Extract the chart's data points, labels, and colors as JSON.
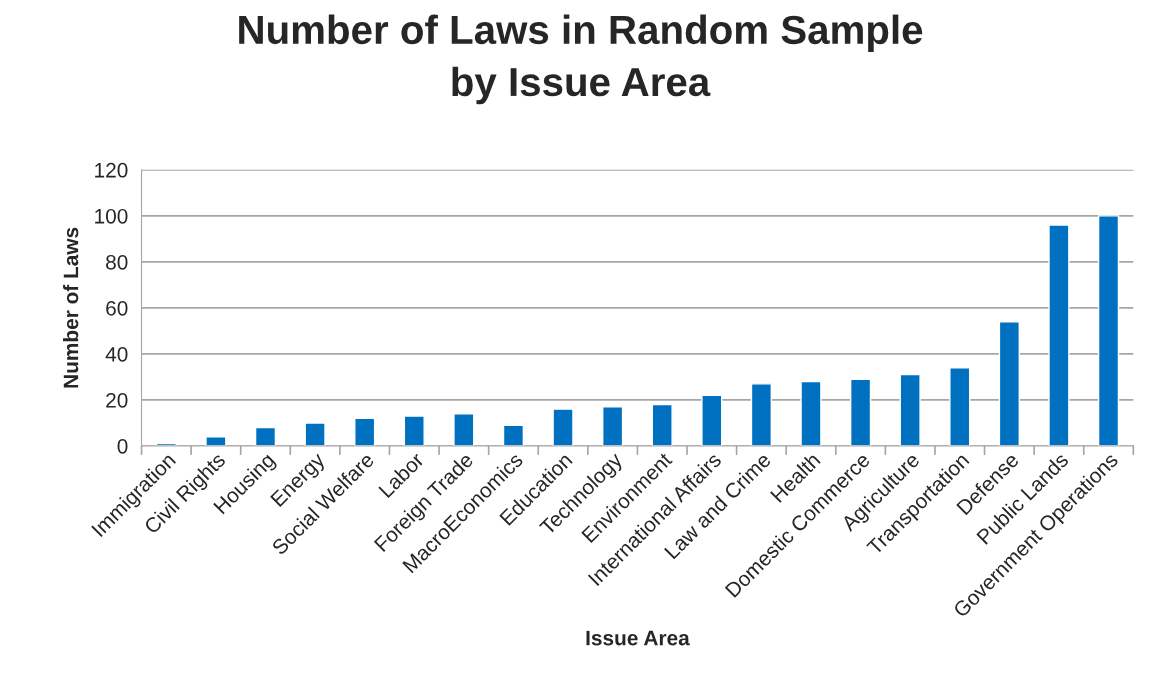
{
  "chart_data": {
    "type": "bar",
    "title": "Number of Laws in Random Sample\nby Issue Area",
    "xlabel": "Issue Area",
    "ylabel": "Number of Laws",
    "categories": [
      "Immigration",
      "Civil Rights",
      "Housing",
      "Energy",
      "Social Welfare",
      "Labor",
      "Foreign Trade",
      "MacroEconomics",
      "Education",
      "Technology",
      "Environment",
      "International Affairs",
      "Law and Crime",
      "Health",
      "Domestic Commerce",
      "Agriculture",
      "Transportation",
      "Defense",
      "Public Lands",
      "Government Operations"
    ],
    "values": [
      1,
      4,
      8,
      10,
      12,
      13,
      14,
      9,
      16,
      17,
      18,
      22,
      27,
      28,
      29,
      31,
      34,
      54,
      96,
      100
    ],
    "color": "#0070c0",
    "ylim": [
      0,
      120
    ],
    "yticks": [
      0,
      20,
      40,
      60,
      80,
      100,
      120
    ],
    "grid": "y",
    "legend": false
  }
}
